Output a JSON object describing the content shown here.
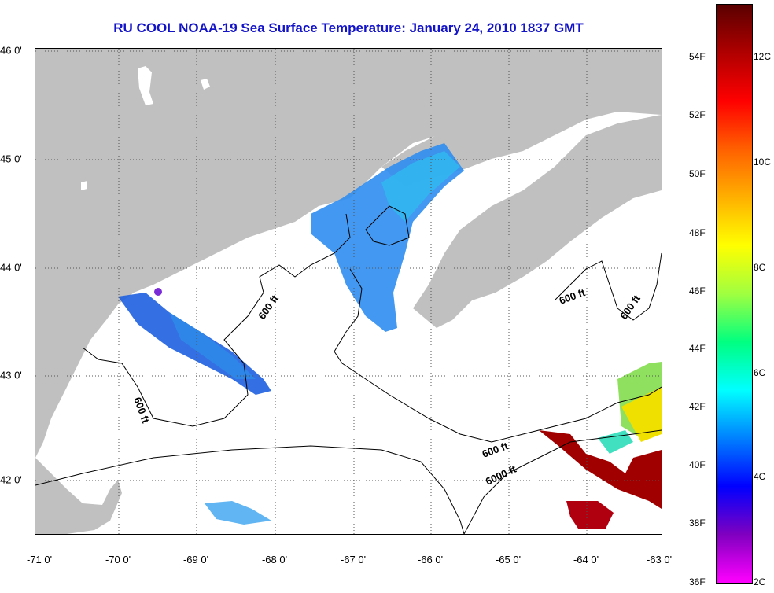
{
  "title": "RU COOL  NOAA-19  Sea Surface Temperature:  January 24, 2010 1837 GMT",
  "colors": {
    "title": "#1313c8",
    "land": "#c0c0c0",
    "ocean": "#ffffff",
    "contour": "#000000"
  },
  "map": {
    "lon_range": [
      -71,
      -63
    ],
    "lat_range": [
      41.5,
      46
    ],
    "lon_labels": [
      "-71 0'",
      "-70 0'",
      "-69 0'",
      "-68 0'",
      "-67 0'",
      "-66 0'",
      "-65 0'",
      "-64 0'",
      "-63 0'"
    ],
    "lat_labels": [
      "46 0'",
      "45 0'",
      "44 0'",
      "43 0'",
      "42 0'"
    ],
    "contour_labels": [
      "600 ft",
      "600 ft",
      "600 ft",
      "600 ft",
      "600 ft",
      "6000 ft"
    ]
  },
  "colorbar": {
    "f_labels": [
      "54F",
      "52F",
      "50F",
      "48F",
      "46F",
      "44F",
      "42F",
      "40F",
      "38F",
      "36F"
    ],
    "c_labels": [
      "12C",
      "10C",
      "8C",
      "6C",
      "4C",
      "2C"
    ],
    "gradient_stops": [
      "#5a0000",
      "#b00000",
      "#ff0000",
      "#ff6000",
      "#ffb000",
      "#ffff00",
      "#a0ff40",
      "#00ff80",
      "#00ffff",
      "#0080ff",
      "#0000ff",
      "#8000c0",
      "#ff00ff"
    ]
  }
}
